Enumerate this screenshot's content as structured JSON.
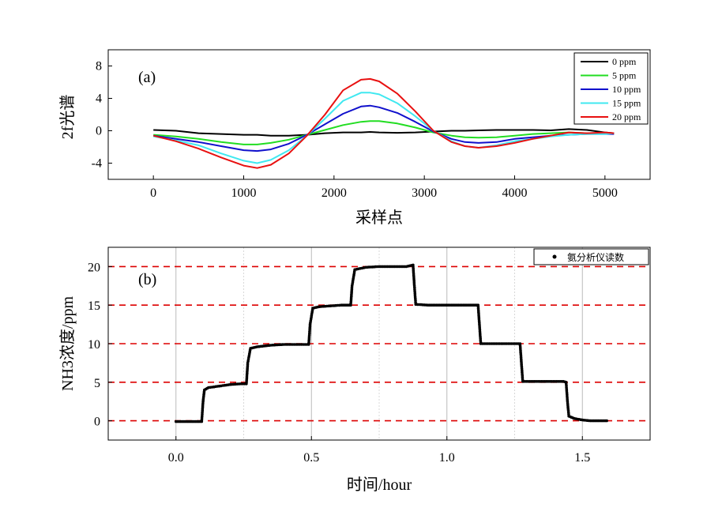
{
  "chart_data": [
    {
      "type": "line",
      "panel_label": "(a)",
      "xlabel": "采样点",
      "ylabel": "2f光谱",
      "xlim": [
        -500,
        5500
      ],
      "ylim": [
        -6,
        10
      ],
      "xticks": [
        0,
        1000,
        2000,
        3000,
        4000,
        5000
      ],
      "xtick_labels": [
        "0",
        "1000",
        "2000",
        "3000",
        "4000",
        "5000"
      ],
      "yticks": [
        -4,
        0,
        4,
        8
      ],
      "ytick_labels": [
        "-4",
        "0",
        "4",
        "8"
      ],
      "grid": false,
      "legend_position": "top-right",
      "x": [
        0,
        250,
        500,
        750,
        1000,
        1150,
        1300,
        1500,
        1700,
        1900,
        2100,
        2300,
        2400,
        2500,
        2700,
        2900,
        3100,
        3300,
        3450,
        3600,
        3800,
        4000,
        4200,
        4400,
        4600,
        4800,
        5000,
        5100
      ],
      "series": [
        {
          "name": "0 ppm",
          "color": "#000000",
          "values": [
            0.1,
            0.0,
            -0.3,
            -0.4,
            -0.5,
            -0.5,
            -0.6,
            -0.6,
            -0.5,
            -0.3,
            -0.2,
            -0.2,
            -0.15,
            -0.2,
            -0.25,
            -0.2,
            -0.1,
            0.0,
            0.0,
            0.05,
            0.1,
            0.1,
            0.1,
            0.05,
            0.2,
            0.1,
            -0.2,
            -0.3
          ]
        },
        {
          "name": "5 ppm",
          "color": "#22dd22",
          "values": [
            -0.5,
            -0.7,
            -1.0,
            -1.4,
            -1.7,
            -1.7,
            -1.5,
            -1.1,
            -0.5,
            0.1,
            0.7,
            1.1,
            1.2,
            1.2,
            0.9,
            0.4,
            -0.2,
            -0.6,
            -0.8,
            -0.85,
            -0.8,
            -0.6,
            -0.4,
            -0.3,
            -0.2,
            -0.3,
            -0.3,
            -0.3
          ]
        },
        {
          "name": "10 ppm",
          "color": "#1010cc",
          "values": [
            -0.6,
            -1.0,
            -1.4,
            -1.9,
            -2.4,
            -2.5,
            -2.3,
            -1.6,
            -0.5,
            0.8,
            2.1,
            3.0,
            3.1,
            2.9,
            2.2,
            1.1,
            -0.1,
            -1.0,
            -1.4,
            -1.5,
            -1.4,
            -1.0,
            -0.8,
            -0.6,
            -0.5,
            -0.4,
            -0.4,
            -0.4
          ]
        },
        {
          "name": "15 ppm",
          "color": "#40e8f0",
          "values": [
            -0.7,
            -1.2,
            -1.8,
            -2.8,
            -3.7,
            -4.0,
            -3.6,
            -2.4,
            -0.6,
            1.5,
            3.7,
            4.7,
            4.7,
            4.5,
            3.4,
            1.8,
            0.0,
            -1.3,
            -1.9,
            -2.1,
            -1.8,
            -1.3,
            -1.0,
            -0.7,
            -0.5,
            -0.4,
            -0.4,
            -0.3
          ]
        },
        {
          "name": "20 ppm",
          "color": "#e81010",
          "values": [
            -0.6,
            -1.3,
            -2.2,
            -3.3,
            -4.3,
            -4.6,
            -4.2,
            -2.8,
            -0.6,
            2.0,
            5.0,
            6.3,
            6.4,
            6.1,
            4.6,
            2.4,
            0.0,
            -1.4,
            -1.9,
            -2.1,
            -1.9,
            -1.5,
            -1.0,
            -0.6,
            -0.2,
            -0.3,
            -0.2,
            -0.3
          ]
        }
      ]
    },
    {
      "type": "scatter",
      "panel_label": "(b)",
      "xlabel": "时间/hour",
      "ylabel": "NH3浓度/ppm",
      "xlim": [
        -0.25,
        1.75
      ],
      "ylim": [
        -2.5,
        22.5
      ],
      "xticks": [
        0.0,
        0.5,
        1.0,
        1.5
      ],
      "xtick_labels": [
        "0.0",
        "0.5",
        "1.0",
        "1.5"
      ],
      "yticks": [
        0,
        5,
        10,
        15,
        20
      ],
      "ytick_labels": [
        "0",
        "5",
        "10",
        "15",
        "20"
      ],
      "reference_lines_y": [
        0,
        5,
        10,
        15,
        20
      ],
      "reference_line_color": "#dd0000",
      "grid": true,
      "legend_position": "top-right",
      "series": [
        {
          "name": "氨分析仪读数",
          "color": "#000000",
          "points": [
            [
              0.0,
              -0.1
            ],
            [
              0.03,
              -0.1
            ],
            [
              0.06,
              -0.1
            ],
            [
              0.095,
              -0.1
            ],
            [
              0.1,
              2.5
            ],
            [
              0.105,
              4.0
            ],
            [
              0.12,
              4.3
            ],
            [
              0.16,
              4.5
            ],
            [
              0.2,
              4.7
            ],
            [
              0.24,
              4.8
            ],
            [
              0.26,
              4.8
            ],
            [
              0.265,
              7.5
            ],
            [
              0.275,
              9.4
            ],
            [
              0.3,
              9.6
            ],
            [
              0.35,
              9.8
            ],
            [
              0.4,
              9.9
            ],
            [
              0.45,
              9.9
            ],
            [
              0.49,
              9.9
            ],
            [
              0.495,
              12.5
            ],
            [
              0.505,
              14.6
            ],
            [
              0.53,
              14.8
            ],
            [
              0.57,
              14.9
            ],
            [
              0.61,
              15.0
            ],
            [
              0.645,
              15.0
            ],
            [
              0.65,
              17.5
            ],
            [
              0.66,
              19.6
            ],
            [
              0.7,
              19.9
            ],
            [
              0.75,
              20.0
            ],
            [
              0.8,
              20.0
            ],
            [
              0.85,
              20.0
            ],
            [
              0.875,
              20.2
            ],
            [
              0.88,
              17.5
            ],
            [
              0.885,
              15.1
            ],
            [
              0.93,
              15.0
            ],
            [
              0.98,
              15.0
            ],
            [
              1.03,
              15.0
            ],
            [
              1.08,
              15.0
            ],
            [
              1.115,
              15.0
            ],
            [
              1.12,
              12.5
            ],
            [
              1.125,
              10.0
            ],
            [
              1.17,
              10.0
            ],
            [
              1.22,
              10.0
            ],
            [
              1.27,
              10.0
            ],
            [
              1.275,
              7.5
            ],
            [
              1.28,
              5.1
            ],
            [
              1.33,
              5.1
            ],
            [
              1.38,
              5.1
            ],
            [
              1.43,
              5.1
            ],
            [
              1.44,
              5.0
            ],
            [
              1.445,
              2.5
            ],
            [
              1.45,
              0.6
            ],
            [
              1.47,
              0.3
            ],
            [
              1.5,
              0.1
            ],
            [
              1.53,
              0.0
            ],
            [
              1.56,
              0.0
            ],
            [
              1.59,
              0.0
            ]
          ]
        }
      ]
    }
  ]
}
